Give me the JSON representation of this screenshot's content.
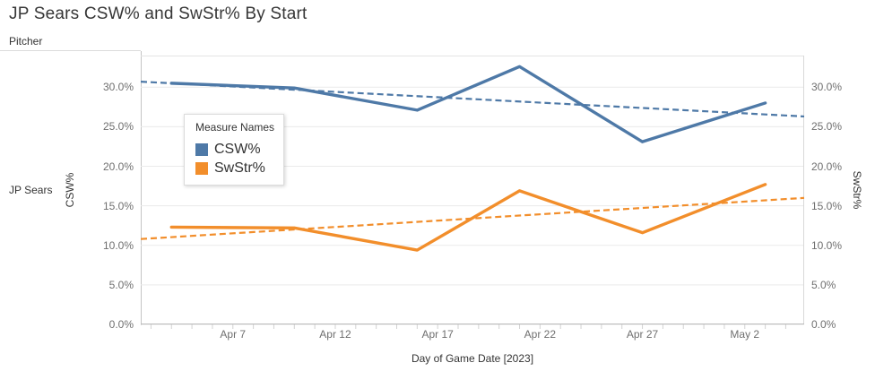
{
  "header": {
    "title": "JP Sears CSW% and SwStr% By Start"
  },
  "row_field": {
    "label": "Pitcher",
    "row_label": "JP Sears"
  },
  "legend": {
    "title": "Measure Names",
    "items": [
      {
        "label": "CSW%",
        "color": "#4e79a7"
      },
      {
        "label": "SwStr%",
        "color": "#f28e2b"
      }
    ]
  },
  "axes": {
    "left_title": "CSW%",
    "right_title": "SwStr%",
    "x_title": "Day of Game Date [2023]",
    "y_tick_values": [
      0,
      5,
      10,
      15,
      20,
      25,
      30
    ],
    "y_tick_labels": [
      "0.0%",
      "5.0%",
      "10.0%",
      "15.0%",
      "20.0%",
      "25.0%",
      "30.0%"
    ],
    "x_tick_labels": [
      "Apr 7",
      "Apr 12",
      "Apr 17",
      "Apr 22",
      "Apr 27",
      "May 2"
    ],
    "x_tick_day_offsets": [
      0,
      5,
      10,
      15,
      20,
      25
    ]
  },
  "chart_data": {
    "type": "line",
    "title": "JP Sears CSW% and SwStr% By Start",
    "xlabel": "Day of Game Date [2023]",
    "ylabel_left": "CSW%",
    "ylabel_right": "SwStr%",
    "grid": true,
    "legend_position": "floating-upper-left",
    "x_dates": [
      "Apr 4",
      "Apr 10",
      "Apr 16",
      "Apr 21",
      "Apr 27",
      "May 3"
    ],
    "x_day_offsets": [
      -3,
      3,
      9,
      14,
      20,
      26
    ],
    "x_domain_days": [
      -4.5,
      27.9
    ],
    "y_domain": [
      0,
      34
    ],
    "series": [
      {
        "name": "CSW%",
        "axis": "left",
        "color": "#4e79a7",
        "values": [
          30.5,
          29.9,
          27.1,
          32.6,
          23.1,
          28.0
        ],
        "trend_dashed": {
          "start": 30.7,
          "end": 26.3
        }
      },
      {
        "name": "SwStr%",
        "axis": "right",
        "color": "#f28e2b",
        "values": [
          12.3,
          12.2,
          9.4,
          16.9,
          11.6,
          17.7
        ],
        "trend_dashed": {
          "start": 10.8,
          "end": 16.0
        }
      }
    ],
    "colors": {
      "gridline": "#eaeaea",
      "border_top": "#e4e4e4",
      "border_right": "#d8d8d8",
      "axis_bottom": "#b9b9b9",
      "tick": "#d2d2d2"
    }
  }
}
